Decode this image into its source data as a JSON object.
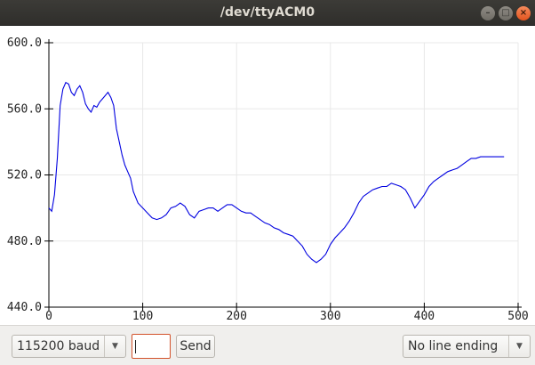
{
  "window": {
    "title": "/dev/ttyACM0"
  },
  "toolbar": {
    "baud_value": "115200 baud",
    "message_value": "",
    "send_label": "Send",
    "line_ending_value": "No line ending"
  },
  "chart_data": {
    "type": "line",
    "xlim": [
      0,
      500
    ],
    "ylim": [
      440,
      600
    ],
    "x_ticks": [
      "0",
      "100",
      "200",
      "300",
      "400",
      "500"
    ],
    "y_ticks": [
      "440.0",
      "480.0",
      "520.0",
      "560.0",
      "600.0"
    ],
    "grid": true,
    "series": [
      {
        "color": "#0000e0",
        "x": [
          0,
          3,
          6,
          9,
          12,
          15,
          18,
          21,
          24,
          27,
          30,
          33,
          36,
          39,
          42,
          45,
          48,
          51,
          54,
          57,
          60,
          63,
          66,
          69,
          72,
          75,
          78,
          81,
          84,
          87,
          90,
          95,
          100,
          105,
          110,
          115,
          120,
          125,
          130,
          135,
          140,
          145,
          150,
          155,
          160,
          165,
          170,
          175,
          180,
          185,
          190,
          195,
          200,
          205,
          210,
          215,
          220,
          225,
          230,
          235,
          240,
          245,
          250,
          255,
          260,
          265,
          270,
          275,
          280,
          285,
          290,
          295,
          300,
          305,
          310,
          315,
          320,
          325,
          330,
          335,
          340,
          345,
          350,
          355,
          360,
          365,
          370,
          375,
          380,
          385,
          390,
          395,
          400,
          405,
          410,
          415,
          420,
          425,
          430,
          435,
          440,
          445,
          450,
          455,
          460,
          465,
          470,
          475,
          480,
          485
        ],
        "y": [
          500,
          498,
          508,
          530,
          562,
          572,
          576,
          575,
          570,
          568,
          572,
          574,
          570,
          563,
          560,
          558,
          562,
          561,
          564,
          566,
          568,
          570,
          567,
          562,
          548,
          540,
          532,
          526,
          522,
          518,
          510,
          503,
          500,
          497,
          494,
          493,
          494,
          496,
          500,
          501,
          503,
          501,
          496,
          494,
          498,
          499,
          500,
          500,
          498,
          500,
          502,
          502,
          500,
          498,
          497,
          497,
          495,
          493,
          491,
          490,
          488,
          487,
          485,
          484,
          483,
          480,
          477,
          472,
          469,
          467,
          469,
          472,
          478,
          482,
          485,
          488,
          492,
          497,
          503,
          507,
          509,
          511,
          512,
          513,
          513,
          515,
          514,
          513,
          511,
          506,
          500,
          504,
          508,
          513,
          516,
          518,
          520,
          522,
          523,
          524,
          526,
          528,
          530,
          530,
          531,
          531,
          531,
          531,
          531,
          531
        ]
      }
    ]
  }
}
